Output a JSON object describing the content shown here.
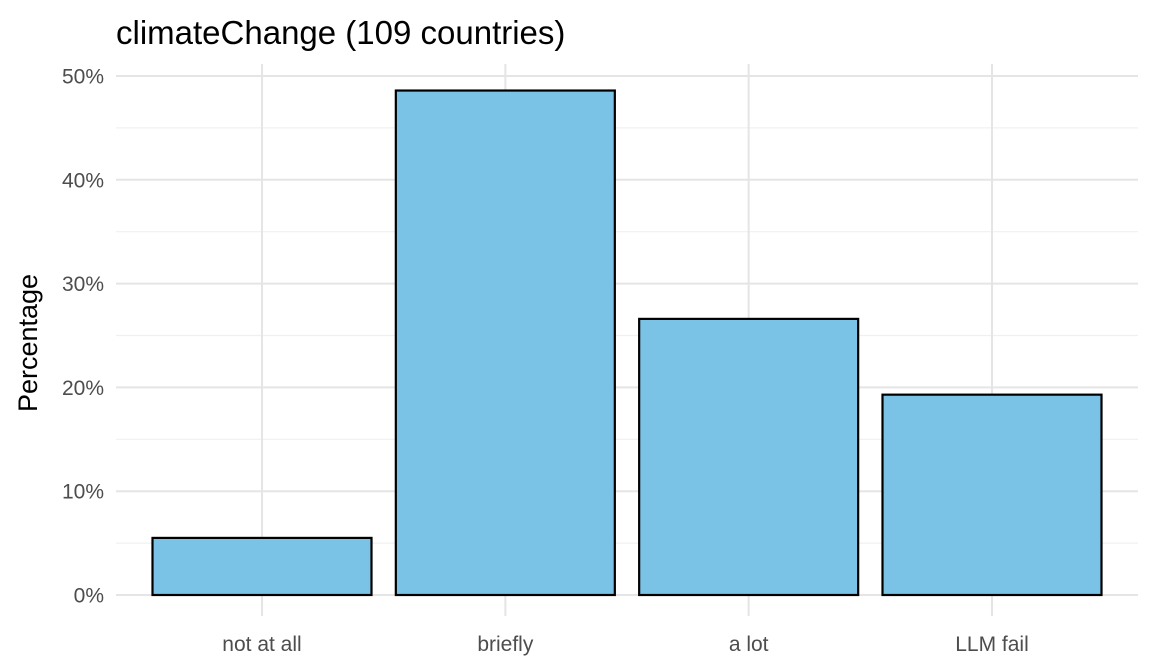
{
  "chart_data": {
    "type": "bar",
    "title": "climateChange (109 countries)",
    "xlabel": "",
    "ylabel": "Percentage",
    "categories": [
      "not at all",
      "briefly",
      "a lot",
      "LLM fail"
    ],
    "values": [
      5.5,
      48.6,
      26.6,
      19.3
    ],
    "ylim": [
      0,
      50
    ],
    "yticks": [
      "0%",
      "10%",
      "20%",
      "30%",
      "40%",
      "50%"
    ],
    "grid": true,
    "legend": "none",
    "colors": {
      "bar_fill": "#7AC2E6",
      "bar_stroke": "#000000"
    }
  }
}
